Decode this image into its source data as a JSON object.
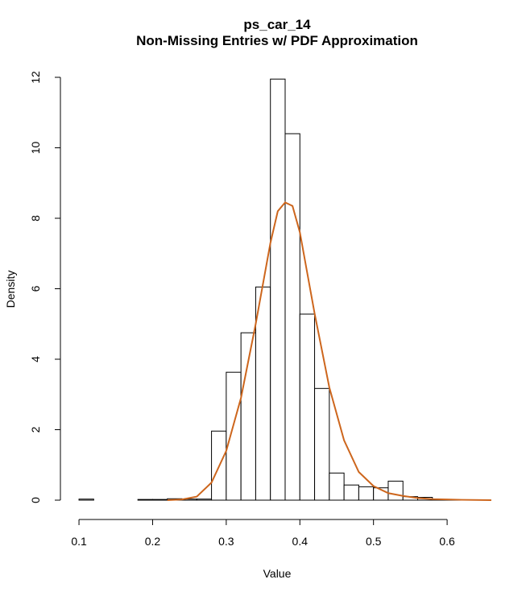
{
  "chart_data": {
    "type": "histogram",
    "title": "ps_car_14",
    "subtitle": "Non-Missing Entries w/ PDF Approximation",
    "x_label": "Value",
    "y_label": "Density",
    "bins": [
      0.1,
      0.12,
      0.14,
      0.16,
      0.18,
      0.2,
      0.22,
      0.24,
      0.26,
      0.28,
      0.3,
      0.32,
      0.34,
      0.36,
      0.38,
      0.4,
      0.42,
      0.44,
      0.46,
      0.48,
      0.5,
      0.52,
      0.54,
      0.56,
      0.58,
      0.6,
      0.62
    ],
    "counts": [
      0.03,
      0,
      0,
      0,
      0.02,
      0.02,
      0.04,
      0.03,
      0.03,
      1.96,
      3.63,
      4.75,
      6.05,
      11.95,
      10.4,
      5.28,
      3.17,
      0.77,
      0.43,
      0.38,
      0.35,
      0.54,
      0.1,
      0.08,
      0.02,
      0.01
    ],
    "bar_color": "#ffffff",
    "edge_color": "#000000",
    "density": {
      "color": "#cd661d",
      "x": [
        0.22,
        0.24,
        0.26,
        0.28,
        0.3,
        0.32,
        0.34,
        0.36,
        0.37,
        0.38,
        0.39,
        0.4,
        0.42,
        0.44,
        0.46,
        0.48,
        0.5,
        0.52,
        0.54,
        0.56,
        0.58,
        0.6,
        0.62,
        0.66
      ],
      "y": [
        0,
        0.02,
        0.1,
        0.5,
        1.4,
        2.9,
        5.0,
        7.3,
        8.2,
        8.45,
        8.35,
        7.6,
        5.3,
        3.2,
        1.7,
        0.8,
        0.4,
        0.2,
        0.12,
        0.06,
        0.03,
        0.02,
        0.01,
        0
      ]
    },
    "xlim": [
      0.075,
      0.665
    ],
    "ylim": [
      -0.48,
      12.48
    ],
    "xticks": [
      0.1,
      0.2,
      0.3,
      0.4,
      0.5,
      0.6
    ],
    "yticks": [
      0,
      2,
      4,
      6,
      8,
      10,
      12
    ]
  }
}
